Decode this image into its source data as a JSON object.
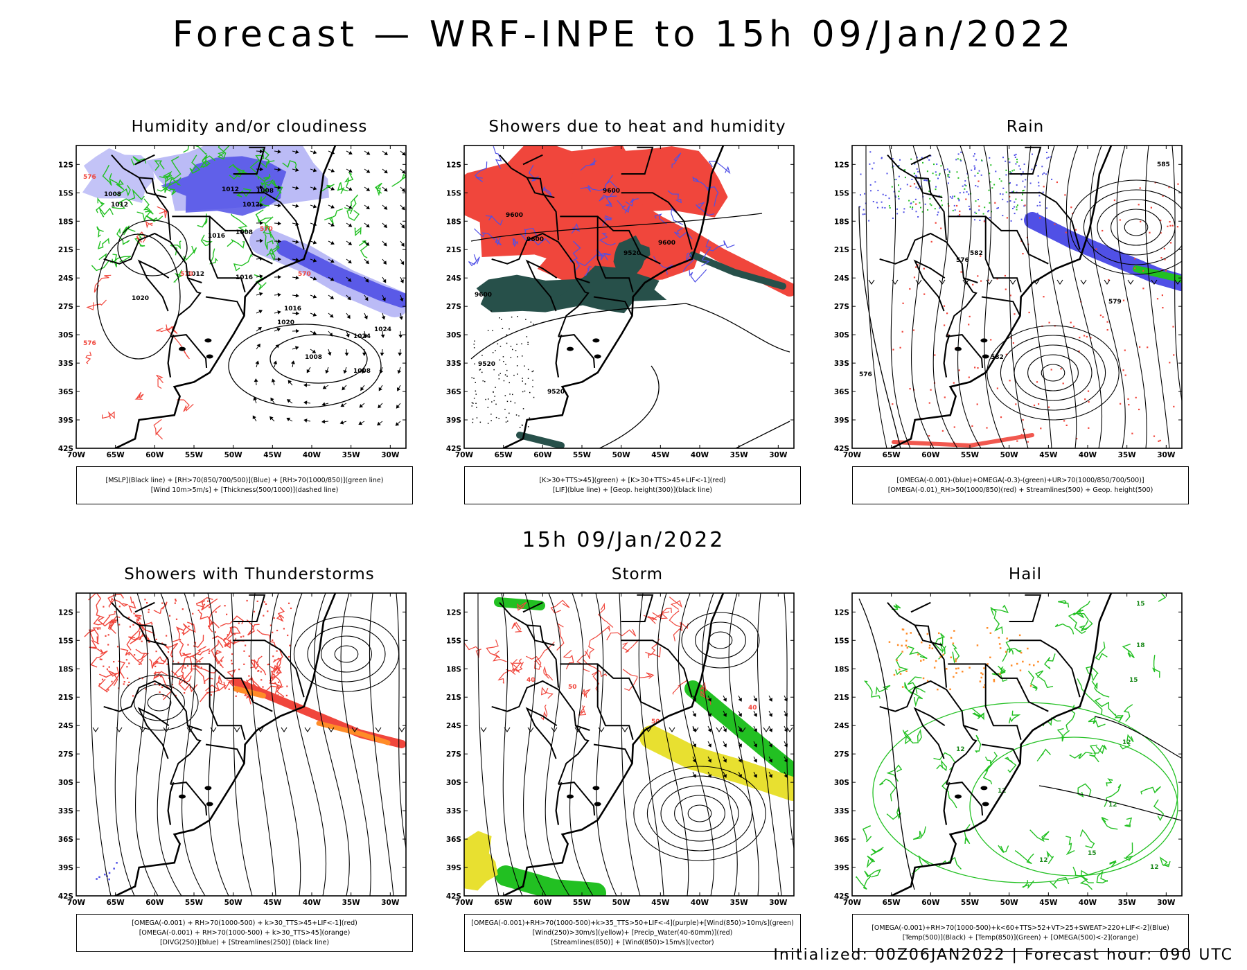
{
  "title": "Forecast — WRF-INPE to 15h 09/Jan/2022",
  "middle_title": "15h 09/Jan/2022",
  "footer": "Initialized: 00Z06JAN2022 | Forecast hour: 090 UTC",
  "axes": {
    "lat_labels": [
      "12S",
      "15S",
      "18S",
      "21S",
      "24S",
      "27S",
      "30S",
      "33S",
      "36S",
      "39S",
      "42S"
    ],
    "lon_labels": [
      "70W",
      "65W",
      "60W",
      "55W",
      "50W",
      "45W",
      "40W",
      "35W",
      "30W"
    ]
  },
  "colors": {
    "blue": "#5050e6",
    "lightblue": "#b4b4f5",
    "green": "#22c022",
    "red": "#f0463c",
    "darkgreen": "#27504a",
    "orange": "#ff8c28",
    "yellow": "#e8e030",
    "black": "#000000"
  },
  "panels": [
    {
      "title": "Humidity and/or cloudiness",
      "legend": [
        "[MSLP](Black line) + [RH>70(850/700/500)](Blue) + [RH>70(1000/850)](green line)",
        "[Wind 10m>5m/s] + [Thickness(500/1000)](dashed line)"
      ],
      "labels": [
        "1012",
        "1008",
        "1012",
        "1012",
        "1008",
        "1008",
        "1016",
        "1012",
        "1016",
        "1020",
        "1016",
        "1020",
        "1024",
        "1024",
        "1008",
        "1008",
        "570",
        "570",
        "570",
        "576",
        "576"
      ]
    },
    {
      "title": "Showers due to heat and humidity",
      "legend": [
        "[K>30+TTS>45](green) + [K>30+TTS>45+LIF<-1](red)",
        "[LIF](blue line) + [Geop. height(300)](black line)"
      ],
      "labels": [
        "9600",
        "9600",
        "9600",
        "9520",
        "9600",
        "9600",
        "9520",
        "9520"
      ]
    },
    {
      "title": "Rain",
      "legend": [
        "[OMEGA(-0.001)-(blue)+OMEGA(-0.3)-(green)+UR>70(1000/850/700/500)]",
        "[OMEGA(-0.01)_RH>50(1000/850)(red) + Streamlines(500) + Geop. height(500)"
      ],
      "labels": [
        "585",
        "582",
        "576",
        "579",
        "582",
        "576"
      ]
    },
    {
      "title": "Showers with Thunderstorms",
      "legend": [
        "[OMEGA(-0.001) + RH>70(1000-500) + k>30_TTS>45+LIF<-1](red)",
        "[OMEGA(-0.001) + RH>70(1000-500) + k>30_TTS>45](orange)",
        "[DIVG(250)](blue) + [Streamlines(250)] (black line)"
      ],
      "labels": []
    },
    {
      "title": "Storm",
      "legend": [
        "[OMEGA(-0.001)+RH>70(1000-500)+k>35_TTS>50+LIF<-4](purple)+[Wind(850)>10m/s](green)",
        "[Wind(250)>30m/s](yellow)+ [Precip_Water(40-60mm)](red)",
        "[Streamlines(850)] + [Wind(850)>15m/s](vector)"
      ],
      "labels": [
        "40",
        "50",
        "40",
        "50"
      ]
    },
    {
      "title": "Hail",
      "legend": [
        "[OMEGA(-0.001)+RH>70(1000-500)+k<60+TTS>52+VT>25+SWEAT>220+LIF<-2](Blue)",
        "[Temp(500)](Black) + [Temp(850)](Green) + [OMEGA(500)<-2](orange)"
      ],
      "labels": [
        "15",
        "18",
        "15",
        "12",
        "12",
        "12",
        "12",
        "12",
        "15",
        "12"
      ]
    }
  ]
}
